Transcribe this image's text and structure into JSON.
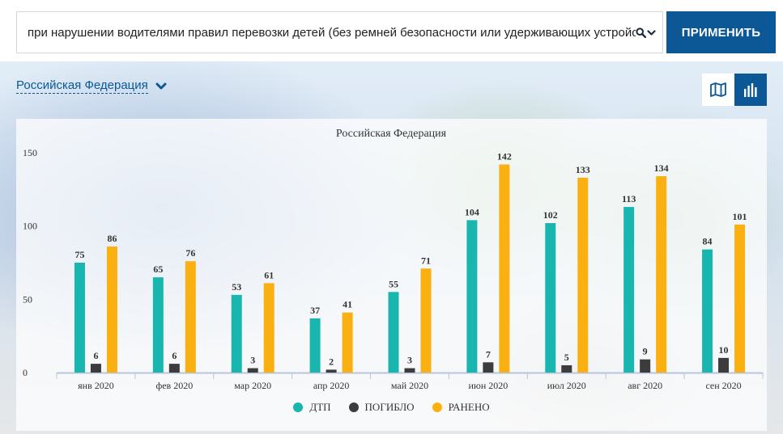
{
  "filter": {
    "selected_text": "при нарушении водителями правил перевозки детей (без ремней безопасности или удерживающих устройств)",
    "search_icon": "search-icon",
    "dropdown_icon": "chevron-down-icon",
    "apply_label": "ПРИМЕНИТЬ"
  },
  "region": {
    "label": "Российская Федерация",
    "chevron_icon": "chevron-down-icon"
  },
  "view_toggle": {
    "map_icon": "map-icon",
    "bars_icon": "bar-chart-icon",
    "active": "bars"
  },
  "colors": {
    "brand": "#0c5896",
    "dtp": "#18b6ae",
    "killed": "#3c3c3c",
    "injured": "#fbb011",
    "axis": "#b8c5db"
  },
  "chart_data": {
    "type": "bar",
    "title": "Российская Федерация",
    "categories": [
      "янв 2020",
      "фев 2020",
      "мар 2020",
      "апр 2020",
      "май 2020",
      "июн 2020",
      "июл 2020",
      "авг 2020",
      "сен 2020"
    ],
    "series": [
      {
        "name": "ДТП",
        "color": "#18b6ae",
        "values": [
          75,
          65,
          53,
          37,
          55,
          104,
          102,
          113,
          84
        ]
      },
      {
        "name": "ПОГИБЛО",
        "color": "#3c3c3c",
        "values": [
          6,
          6,
          3,
          2,
          3,
          7,
          5,
          9,
          10
        ]
      },
      {
        "name": "РАНЕНО",
        "color": "#fbb011",
        "values": [
          86,
          76,
          61,
          41,
          71,
          142,
          133,
          134,
          101
        ]
      }
    ],
    "y_ticks": [
      0,
      50,
      100,
      150
    ],
    "ylim": [
      0,
      150
    ],
    "grid": false,
    "legend_position": "bottom-center",
    "xlabel": "",
    "ylabel": ""
  }
}
